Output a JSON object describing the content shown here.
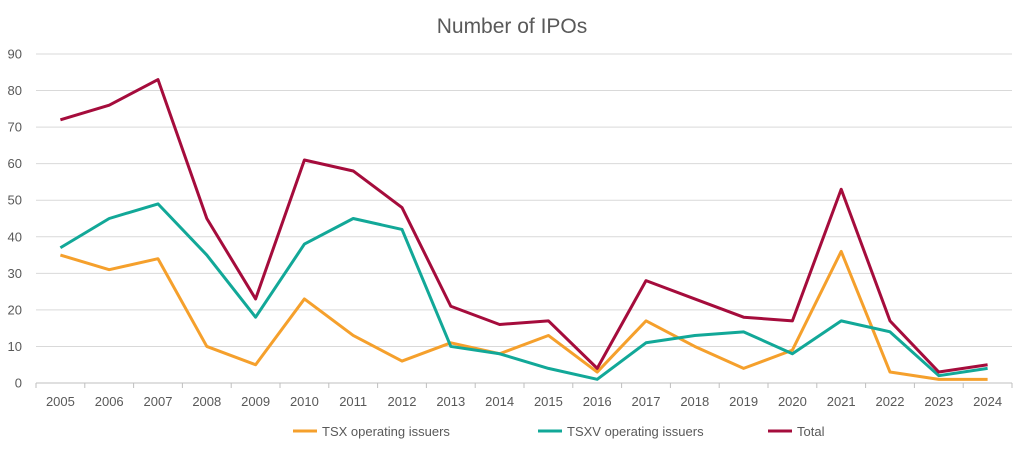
{
  "chart_data": {
    "type": "line",
    "title": "Number of IPOs",
    "xlabel": "",
    "ylabel": "",
    "ylim": [
      0,
      90
    ],
    "yticks": [
      0,
      10,
      20,
      30,
      40,
      50,
      60,
      70,
      80,
      90
    ],
    "grid": true,
    "legend_position": "bottom",
    "categories": [
      "2005",
      "2006",
      "2007",
      "2008",
      "2009",
      "2010",
      "2011",
      "2012",
      "2013",
      "2014",
      "2015",
      "2016",
      "2017",
      "2018",
      "2019",
      "2020",
      "2021",
      "2022",
      "2023",
      "2024"
    ],
    "series": [
      {
        "name": "TSX operating issuers",
        "color": "#F5A02C",
        "values": [
          35,
          31,
          34,
          10,
          5,
          23,
          13,
          6,
          11,
          8,
          13,
          3,
          17,
          10,
          4,
          9,
          36,
          3,
          1,
          1
        ]
      },
      {
        "name": "TSXV operating issuers",
        "color": "#12A898",
        "values": [
          37,
          45,
          49,
          35,
          18,
          38,
          45,
          42,
          10,
          8,
          4,
          1,
          11,
          13,
          14,
          8,
          17,
          14,
          2,
          4
        ]
      },
      {
        "name": "Total",
        "color": "#A50C3C",
        "values": [
          72,
          76,
          83,
          45,
          23,
          61,
          58,
          48,
          21,
          16,
          17,
          4,
          28,
          23,
          18,
          17,
          53,
          17,
          3,
          5
        ]
      }
    ]
  }
}
